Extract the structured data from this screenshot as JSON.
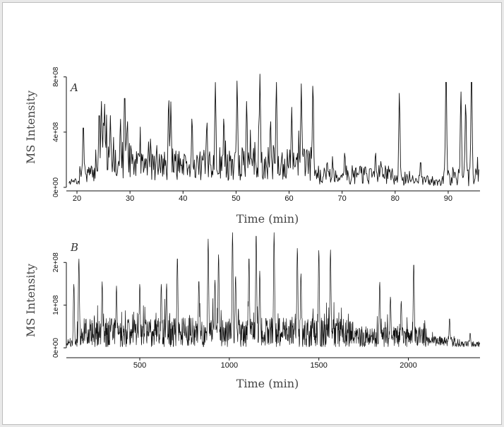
{
  "chart_data": [
    {
      "type": "line",
      "panel_label": "A",
      "xlabel": "Time (min)",
      "ylabel": "MS Intensity",
      "xlim": [
        18,
        96
      ],
      "ylim": [
        0,
        850000000.0
      ],
      "x_ticks": [
        20,
        30,
        40,
        50,
        60,
        70,
        80,
        90
      ],
      "x_tick_labels": [
        "20",
        "30",
        "40",
        "50",
        "60",
        "70",
        "80",
        "90"
      ],
      "y_ticks": [
        0,
        400000000,
        800000000
      ],
      "y_tick_labels": [
        "0e+00",
        "4e+08",
        "8e+08"
      ],
      "grid": false,
      "color": "#111111",
      "baseline_regions": [
        {
          "x_range": [
            18.5,
            20.5
          ],
          "mean": 40000000.0,
          "amp": 20000000.0
        },
        {
          "x_range": [
            20.5,
            23.5
          ],
          "mean": 100000000.0,
          "amp": 60000000.0
        },
        {
          "x_range": [
            23.5,
            30.5
          ],
          "mean": 200000000.0,
          "amp": 140000000.0
        },
        {
          "x_range": [
            30.5,
            49
          ],
          "mean": 160000000.0,
          "amp": 110000000.0
        },
        {
          "x_range": [
            49,
            65
          ],
          "mean": 170000000.0,
          "amp": 120000000.0
        },
        {
          "x_range": [
            65,
            80
          ],
          "mean": 90000000.0,
          "amp": 70000000.0
        },
        {
          "x_range": [
            80,
            89
          ],
          "mean": 50000000.0,
          "amp": 40000000.0
        },
        {
          "x_range": [
            89,
            95.8
          ],
          "mean": 80000000.0,
          "amp": 70000000.0
        }
      ],
      "peaks": [
        {
          "x": 21.2,
          "y": 480000000.0
        },
        {
          "x": 24.2,
          "y": 580000000.0
        },
        {
          "x": 24.6,
          "y": 630000000.0
        },
        {
          "x": 25.2,
          "y": 610000000.0
        },
        {
          "x": 26.3,
          "y": 520000000.0
        },
        {
          "x": 28.2,
          "y": 500000000.0
        },
        {
          "x": 29.0,
          "y": 720000000.0
        },
        {
          "x": 29.5,
          "y": 500000000.0
        },
        {
          "x": 33.5,
          "y": 330000000.0
        },
        {
          "x": 37.3,
          "y": 660000000.0
        },
        {
          "x": 37.7,
          "y": 620000000.0
        },
        {
          "x": 41.7,
          "y": 520000000.0
        },
        {
          "x": 44.5,
          "y": 490000000.0
        },
        {
          "x": 46.1,
          "y": 760000000.0
        },
        {
          "x": 47.7,
          "y": 520000000.0
        },
        {
          "x": 50.2,
          "y": 780000000.0
        },
        {
          "x": 52.0,
          "y": 630000000.0
        },
        {
          "x": 54.5,
          "y": 820000000.0
        },
        {
          "x": 56.5,
          "y": 500000000.0
        },
        {
          "x": 57.6,
          "y": 770000000.0
        },
        {
          "x": 60.5,
          "y": 580000000.0
        },
        {
          "x": 62.3,
          "y": 750000000.0
        },
        {
          "x": 64.5,
          "y": 770000000.0
        },
        {
          "x": 70.5,
          "y": 260000000.0
        },
        {
          "x": 76.3,
          "y": 260000000.0
        },
        {
          "x": 80.8,
          "y": 690000000.0
        },
        {
          "x": 84.8,
          "y": 200000000.0
        },
        {
          "x": 89.6,
          "y": 850000000.0
        },
        {
          "x": 92.4,
          "y": 700000000.0
        },
        {
          "x": 93.3,
          "y": 630000000.0
        },
        {
          "x": 94.4,
          "y": 850000000.0
        }
      ]
    },
    {
      "type": "line",
      "panel_label": "B",
      "xlabel": "Time (min)",
      "ylabel": "MS Intensity",
      "xlim": [
        90,
        2400
      ],
      "ylim": [
        0,
        270000000.0
      ],
      "x_ticks": [
        500,
        1000,
        1500,
        2000
      ],
      "x_tick_labels": [
        "500",
        "1000",
        "1500",
        "2000"
      ],
      "y_ticks": [
        0,
        100000000,
        200000000
      ],
      "y_tick_labels": [
        "0e+00",
        "1e+08",
        "2e+08"
      ],
      "grid": false,
      "color": "#111111",
      "baseline_regions": [
        {
          "x_range": [
            90,
            150
          ],
          "mean": 12000000.0,
          "amp": 10000000.0
        },
        {
          "x_range": [
            150,
            1700
          ],
          "mean": 35000000.0,
          "amp": 35000000.0
        },
        {
          "x_range": [
            1700,
            2100
          ],
          "mean": 25000000.0,
          "amp": 25000000.0
        },
        {
          "x_range": [
            2100,
            2260
          ],
          "mean": 15000000.0,
          "amp": 12000000.0
        },
        {
          "x_range": [
            2260,
            2400
          ],
          "mean": 8000000.0,
          "amp": 7000000.0
        }
      ],
      "peaks": [
        {
          "x": 132,
          "y": 150000000.0
        },
        {
          "x": 160,
          "y": 210000000.0
        },
        {
          "x": 290,
          "y": 155000000.0
        },
        {
          "x": 370,
          "y": 145000000.0
        },
        {
          "x": 500,
          "y": 150000000.0
        },
        {
          "x": 620,
          "y": 150000000.0
        },
        {
          "x": 650,
          "y": 150000000.0
        },
        {
          "x": 710,
          "y": 215000000.0
        },
        {
          "x": 830,
          "y": 160000000.0
        },
        {
          "x": 882,
          "y": 255000000.0
        },
        {
          "x": 920,
          "y": 160000000.0
        },
        {
          "x": 940,
          "y": 220000000.0
        },
        {
          "x": 1018,
          "y": 270000000.0
        },
        {
          "x": 1035,
          "y": 170000000.0
        },
        {
          "x": 1110,
          "y": 215000000.0
        },
        {
          "x": 1150,
          "y": 270000000.0
        },
        {
          "x": 1170,
          "y": 180000000.0
        },
        {
          "x": 1250,
          "y": 270000000.0
        },
        {
          "x": 1380,
          "y": 235000000.0
        },
        {
          "x": 1400,
          "y": 175000000.0
        },
        {
          "x": 1500,
          "y": 230000000.0
        },
        {
          "x": 1565,
          "y": 230000000.0
        },
        {
          "x": 1840,
          "y": 155000000.0
        },
        {
          "x": 1900,
          "y": 120000000.0
        },
        {
          "x": 1960,
          "y": 110000000.0
        },
        {
          "x": 2030,
          "y": 200000000.0
        },
        {
          "x": 2230,
          "y": 70000000.0
        },
        {
          "x": 2345,
          "y": 35000000.0
        }
      ]
    }
  ]
}
